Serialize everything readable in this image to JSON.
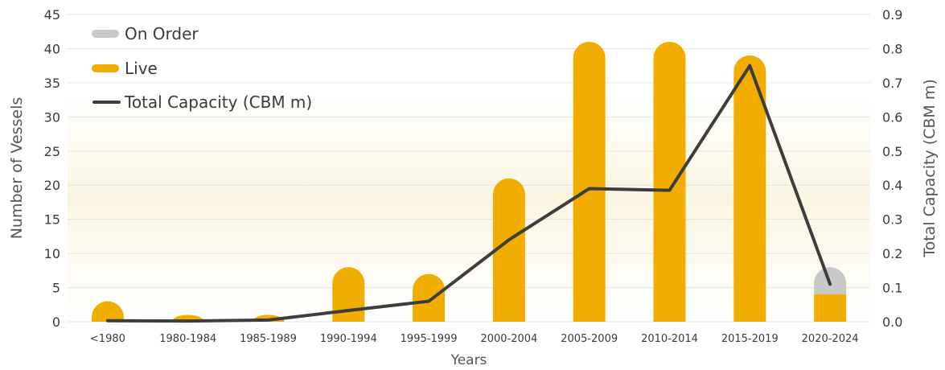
{
  "chart_data": {
    "type": "bar",
    "title": "",
    "xlabel": "Years",
    "ylabel": "Number of Vessels",
    "y2label": "Total Capacity (CBM m)",
    "categories": [
      "<1980",
      "1980-1984",
      "1985-1989",
      "1990-1994",
      "1995-1999",
      "2000-2004",
      "2005-2009",
      "2010-2014",
      "2015-2019",
      "2020-2024"
    ],
    "stacked": true,
    "ylim": [
      0,
      45
    ],
    "y2lim": [
      0,
      0.9
    ],
    "yticks": [
      "0",
      "5",
      "10",
      "15",
      "20",
      "25",
      "30",
      "35",
      "40",
      "45"
    ],
    "y2ticks": [
      "0.0",
      "0.1",
      "0.2",
      "0.3",
      "0.4",
      "0.5",
      "0.6",
      "0.7",
      "0.8",
      "0.9"
    ],
    "grid": true,
    "legend_position": "top-left",
    "series": [
      {
        "name": "Live",
        "kind": "bar",
        "axis": "left",
        "color": "#F2AE00",
        "values": [
          3,
          1,
          1,
          8,
          7,
          21,
          41,
          41,
          39,
          4
        ]
      },
      {
        "name": "On Order",
        "kind": "bar",
        "axis": "left",
        "color": "#C8C8C8",
        "values": [
          0,
          0,
          0,
          0,
          0,
          0,
          0,
          0,
          0,
          4
        ]
      },
      {
        "name": "Total Capacity (CBM m)",
        "kind": "line",
        "axis": "right",
        "color": "#3D3D3D",
        "values": [
          0.003,
          0.002,
          0.005,
          0.033,
          0.06,
          0.24,
          0.39,
          0.385,
          0.75,
          0.11
        ]
      }
    ],
    "legend_order": [
      "On Order",
      "Live",
      "Total Capacity (CBM m)"
    ]
  }
}
